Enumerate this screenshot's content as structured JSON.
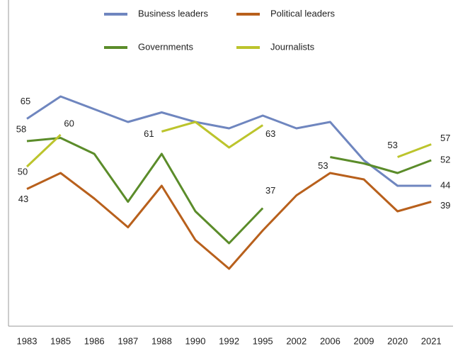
{
  "chart_data": {
    "type": "line",
    "categories": [
      "1983",
      "1985",
      "1986",
      "1987",
      "1988",
      "1990",
      "1992",
      "1995",
      "2002",
      "2006",
      "2009",
      "2020",
      "2021"
    ],
    "ylim": [
      0,
      100
    ],
    "legend": "top",
    "series": [
      {
        "name": "Business leaders",
        "color": "#6f86bf",
        "values": [
          65,
          72,
          68,
          64,
          67,
          64,
          62,
          66,
          62,
          64,
          52,
          44,
          44
        ],
        "value_labels": [
          "65",
          null,
          null,
          null,
          null,
          null,
          null,
          null,
          null,
          null,
          null,
          null,
          "44"
        ]
      },
      {
        "name": "Political leaders",
        "color": "#b8601c",
        "values": [
          43,
          48,
          40,
          31,
          44,
          27,
          18,
          30,
          41,
          48,
          46,
          36,
          39
        ],
        "value_labels": [
          "43",
          null,
          null,
          null,
          null,
          null,
          null,
          null,
          null,
          null,
          null,
          null,
          "39"
        ]
      },
      {
        "name": "Governments",
        "color": "#5b8c2a",
        "values": [
          58,
          59,
          54,
          39,
          54,
          36,
          26,
          37,
          null,
          53,
          51,
          48,
          52
        ],
        "value_labels": [
          "58",
          null,
          null,
          null,
          null,
          null,
          null,
          "37",
          null,
          "53",
          null,
          null,
          "52"
        ]
      },
      {
        "name": "Journalists",
        "color": "#bcc42c",
        "values": [
          50,
          60,
          null,
          null,
          61,
          64,
          56,
          63,
          null,
          null,
          null,
          53,
          57
        ],
        "value_labels": [
          "50",
          "60",
          null,
          null,
          "61",
          null,
          null,
          "63",
          null,
          null,
          null,
          "53",
          "57"
        ]
      }
    ]
  }
}
